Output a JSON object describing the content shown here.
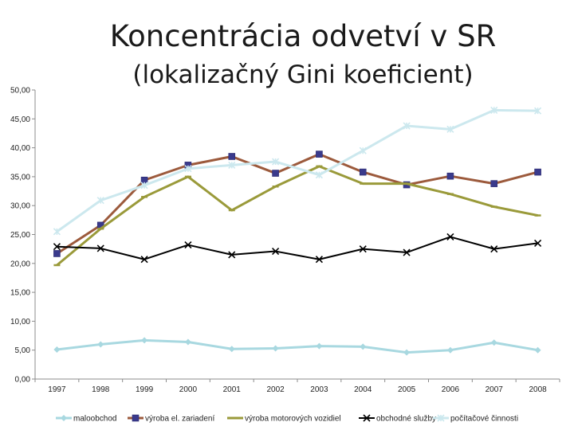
{
  "title": "Koncentrácia odvetví v SR",
  "subtitle": "(lokalizačný Gini koeficient)",
  "chart_data": {
    "type": "line",
    "title": "Koncentrácia odvetví v SR",
    "subtitle": "(lokalizačný Gini koeficient)",
    "x": [
      "1997",
      "1998",
      "1999",
      "2000",
      "2001",
      "2002",
      "2003",
      "2004",
      "2005",
      "2006",
      "2007",
      "2008"
    ],
    "ylim": [
      0,
      50
    ],
    "yticks": [
      "0,00",
      "5,00",
      "10,00",
      "15,00",
      "20,00",
      "25,00",
      "30,00",
      "35,00",
      "40,00",
      "45,00",
      "50,00"
    ],
    "grid": false,
    "legend": "bottom",
    "series": [
      {
        "name": "maloobchod",
        "color": "#a8d8e0",
        "marker": "diamond",
        "values": [
          5.1,
          6.0,
          6.7,
          6.4,
          5.2,
          5.3,
          5.7,
          5.6,
          4.6,
          5.0,
          6.3,
          5.0
        ]
      },
      {
        "name": "výroba el. zariadení",
        "color": "#9c5a3c",
        "marker": "square",
        "values": [
          21.7,
          26.6,
          34.4,
          37.0,
          38.5,
          35.6,
          38.9,
          35.8,
          33.6,
          35.1,
          33.8,
          35.8
        ]
      },
      {
        "name": "výroba motorových vozidiel",
        "color": "#9a9a3a",
        "marker": "dash",
        "values": [
          19.7,
          26.0,
          31.5,
          35.0,
          29.2,
          33.3,
          36.8,
          33.8,
          33.8,
          32.0,
          29.8,
          28.3
        ]
      },
      {
        "name": "obchodné služby",
        "color": "#000000",
        "marker": "x",
        "values": [
          22.9,
          22.6,
          20.7,
          23.2,
          21.5,
          22.1,
          20.7,
          22.5,
          21.9,
          24.6,
          22.5,
          23.5
        ]
      },
      {
        "name": "počítačové činnosti",
        "color": "#cce8ee",
        "marker": "star",
        "values": [
          25.5,
          30.9,
          33.5,
          36.4,
          37.0,
          37.6,
          35.3,
          39.5,
          43.8,
          43.2,
          46.5,
          46.4
        ]
      }
    ]
  }
}
